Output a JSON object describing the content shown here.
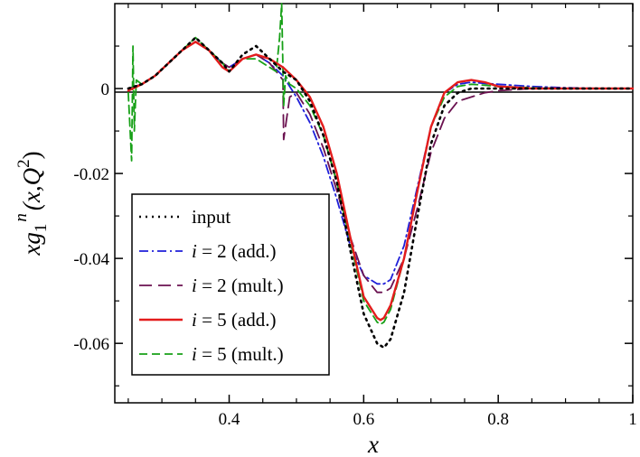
{
  "chart_data": {
    "type": "line",
    "title": "",
    "xlabel": "x",
    "ylabel_parts": {
      "main": "xg",
      "sub": "1",
      "sup": "n",
      "args": "(x,Q",
      "args_sup": "2",
      "args_close": ")"
    },
    "xlim": [
      0.23,
      1.0
    ],
    "ylim": [
      -0.074,
      0.02
    ],
    "x_ticks": [
      0.4,
      0.6,
      0.8,
      1.0
    ],
    "x_tick_labels": [
      "0.4",
      "0.6",
      "0.8",
      "1"
    ],
    "y_ticks": [
      0,
      -0.02,
      -0.04,
      -0.06
    ],
    "y_tick_labels": [
      "0",
      "-0.02",
      "-0.04",
      "-0.06"
    ],
    "legend_position": "bottom-left",
    "series": [
      {
        "name": "input",
        "legend_label": "input",
        "legend_italic_prefix": "",
        "color": "#000000",
        "dash": "2,5",
        "width": 2.6,
        "x": [
          0.25,
          0.27,
          0.29,
          0.31,
          0.33,
          0.35,
          0.37,
          0.39,
          0.4,
          0.42,
          0.44,
          0.46,
          0.48,
          0.5,
          0.52,
          0.54,
          0.56,
          0.58,
          0.6,
          0.62,
          0.63,
          0.64,
          0.66,
          0.68,
          0.7,
          0.72,
          0.74,
          0.76,
          0.78,
          0.8,
          0.85,
          0.9,
          0.95,
          1.0
        ],
        "y": [
          0,
          0.001,
          0.003,
          0.006,
          0.009,
          0.012,
          0.009,
          0.006,
          0.004,
          0.008,
          0.01,
          0.007,
          0.004,
          0.002,
          -0.003,
          -0.011,
          -0.022,
          -0.038,
          -0.053,
          -0.06,
          -0.061,
          -0.059,
          -0.048,
          -0.03,
          -0.013,
          -0.004,
          -0.001,
          0,
          0,
          0,
          0,
          0,
          0,
          0
        ]
      },
      {
        "name": "i = 2 (add.)",
        "legend_label": " = 2 (add.)",
        "legend_italic_prefix": "i",
        "color": "#1f1fd9",
        "dash": "10,4,2,4",
        "width": 1.8,
        "x": [
          0.25,
          0.27,
          0.29,
          0.31,
          0.33,
          0.35,
          0.37,
          0.39,
          0.4,
          0.42,
          0.44,
          0.46,
          0.48,
          0.5,
          0.52,
          0.54,
          0.56,
          0.58,
          0.6,
          0.62,
          0.63,
          0.64,
          0.66,
          0.68,
          0.7,
          0.72,
          0.74,
          0.76,
          0.78,
          0.8,
          0.85,
          0.9,
          0.95,
          1.0
        ],
        "y": [
          0,
          0.001,
          0.003,
          0.006,
          0.009,
          0.011,
          0.009,
          0.006,
          0.005,
          0.007,
          0.008,
          0.006,
          0.003,
          -0.002,
          -0.008,
          -0.016,
          -0.026,
          -0.037,
          -0.044,
          -0.046,
          -0.046,
          -0.045,
          -0.037,
          -0.023,
          -0.009,
          -0.001,
          0.001,
          0.0015,
          0.0012,
          0.001,
          0.0005,
          0.0002,
          0,
          0
        ]
      },
      {
        "name": "i = 2 (mult.)",
        "legend_label": " = 2 (mult.)",
        "legend_italic_prefix": "i",
        "color": "#6b1250",
        "dash": "14,7",
        "width": 1.8,
        "x": [
          0.25,
          0.27,
          0.29,
          0.31,
          0.33,
          0.35,
          0.37,
          0.39,
          0.4,
          0.42,
          0.44,
          0.46,
          0.47,
          0.48,
          0.481,
          0.49,
          0.5,
          0.52,
          0.54,
          0.56,
          0.58,
          0.6,
          0.62,
          0.63,
          0.64,
          0.66,
          0.68,
          0.7,
          0.72,
          0.74,
          0.76,
          0.78,
          0.8,
          0.85,
          0.9,
          0.95,
          1.0
        ],
        "y": [
          0,
          0.001,
          0.003,
          0.006,
          0.009,
          0.011,
          0.009,
          0.006,
          0.005,
          0.007,
          0.008,
          0.006,
          0.004,
          0.002,
          -0.012,
          -0.002,
          -0.001,
          -0.006,
          -0.014,
          -0.024,
          -0.035,
          -0.044,
          -0.048,
          -0.048,
          -0.047,
          -0.04,
          -0.028,
          -0.015,
          -0.007,
          -0.003,
          -0.002,
          -0.001,
          -0.0005,
          0,
          0,
          0,
          0
        ]
      },
      {
        "name": "i = 5 (add.)",
        "legend_label": " = 5 (add.)",
        "legend_italic_prefix": "i",
        "color": "#e31c1c",
        "dash": "",
        "width": 2.4,
        "x": [
          0.25,
          0.27,
          0.29,
          0.31,
          0.33,
          0.35,
          0.37,
          0.39,
          0.4,
          0.42,
          0.44,
          0.46,
          0.48,
          0.5,
          0.52,
          0.54,
          0.56,
          0.58,
          0.6,
          0.62,
          0.625,
          0.63,
          0.64,
          0.66,
          0.68,
          0.7,
          0.72,
          0.74,
          0.76,
          0.78,
          0.8,
          0.85,
          0.9,
          0.95,
          1.0
        ],
        "y": [
          -0.0005,
          0.001,
          0.003,
          0.006,
          0.009,
          0.011,
          0.009,
          0.005,
          0.004,
          0.007,
          0.008,
          0.007,
          0.005,
          0.002,
          -0.002,
          -0.009,
          -0.02,
          -0.035,
          -0.049,
          -0.054,
          -0.0545,
          -0.054,
          -0.051,
          -0.04,
          -0.024,
          -0.009,
          -0.001,
          0.0015,
          0.002,
          0.0015,
          0.0005,
          0,
          0,
          0,
          0
        ]
      },
      {
        "name": "i = 5 (mult.)",
        "legend_label": " = 5 (mult.)",
        "legend_italic_prefix": "i",
        "color": "#17a017",
        "dash": "9,5",
        "width": 1.8,
        "x": [
          0.25,
          0.255,
          0.257,
          0.259,
          0.262,
          0.27,
          0.29,
          0.31,
          0.33,
          0.35,
          0.37,
          0.39,
          0.4,
          0.42,
          0.44,
          0.46,
          0.47,
          0.475,
          0.478,
          0.481,
          0.484,
          0.49,
          0.5,
          0.52,
          0.54,
          0.56,
          0.58,
          0.6,
          0.62,
          0.625,
          0.63,
          0.64,
          0.66,
          0.68,
          0.7,
          0.72,
          0.74,
          0.76,
          0.78,
          0.8,
          0.85,
          0.9,
          0.95,
          1.0
        ],
        "y": [
          -0.001,
          -0.017,
          0.01,
          -0.01,
          0.002,
          0.001,
          0.003,
          0.006,
          0.009,
          0.012,
          0.009,
          0.006,
          0.004,
          0.007,
          0.007,
          0.005,
          0.004,
          0.012,
          0.02,
          -0.004,
          0.003,
          0.001,
          0.0,
          -0.004,
          -0.011,
          -0.022,
          -0.036,
          -0.05,
          -0.055,
          -0.0555,
          -0.055,
          -0.052,
          -0.04,
          -0.024,
          -0.009,
          -0.002,
          0.0005,
          0.001,
          0.0008,
          0.0005,
          0.0002,
          0,
          0,
          0
        ]
      }
    ]
  }
}
